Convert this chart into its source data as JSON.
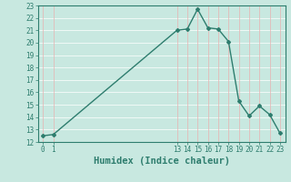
{
  "x": [
    0,
    1,
    13,
    14,
    15,
    16,
    17,
    18,
    19,
    20,
    21,
    22,
    23
  ],
  "y": [
    12.5,
    12.6,
    21.0,
    21.1,
    22.7,
    21.2,
    21.1,
    20.1,
    15.3,
    14.1,
    14.9,
    14.2,
    12.7
  ],
  "line_color": "#2e7d6e",
  "marker_color": "#2e7d6e",
  "background_color": "#c8e8e0",
  "vgrid_color": "#e8b0b0",
  "hgrid_color": "#ffffff",
  "xlabel": "Humidex (Indice chaleur)",
  "ylim": [
    12,
    23
  ],
  "xlim": [
    -0.5,
    23.5
  ],
  "yticks": [
    12,
    13,
    14,
    15,
    16,
    17,
    18,
    19,
    20,
    21,
    22,
    23
  ],
  "xticks": [
    0,
    1,
    13,
    14,
    15,
    16,
    17,
    18,
    19,
    20,
    21,
    22,
    23
  ],
  "tick_label_fontsize": 5.5,
  "xlabel_fontsize": 7.5
}
